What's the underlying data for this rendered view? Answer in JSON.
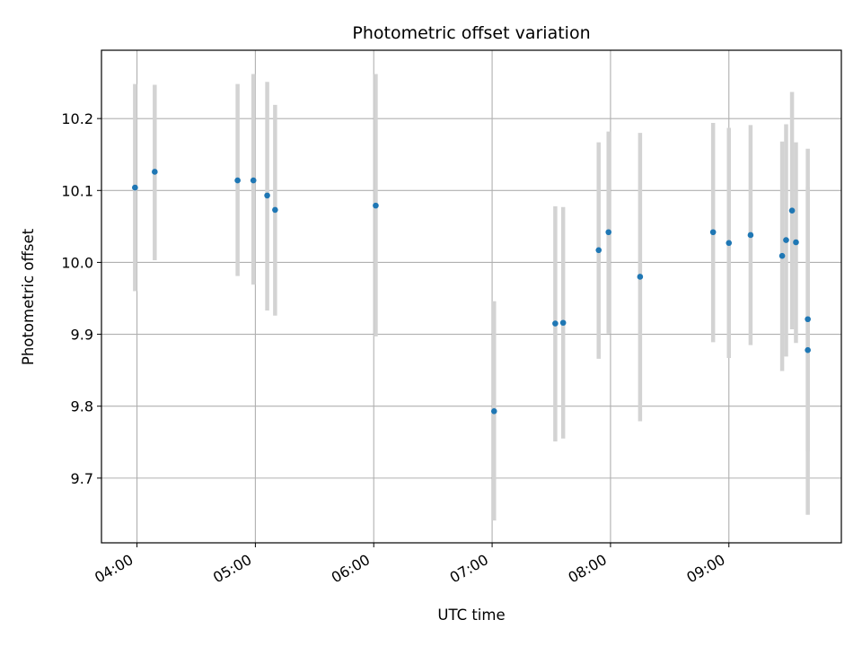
{
  "chart_data": {
    "type": "scatter",
    "title": "Photometric offset variation",
    "xlabel": "UTC time",
    "ylabel": "Photometric offset",
    "x_ticks": [
      "04:00",
      "05:00",
      "06:00",
      "07:00",
      "08:00",
      "09:00"
    ],
    "y_ticks": [
      "9.7",
      "9.8",
      "9.9",
      "10.0",
      "10.1",
      "10.2"
    ],
    "y_tick_values": [
      9.7,
      9.8,
      9.9,
      10.0,
      10.1,
      10.2
    ],
    "xlim": [
      "03:42",
      "09:57"
    ],
    "ylim": [
      9.61,
      10.295
    ],
    "grid": true,
    "point_color": "#1f77b4",
    "errorbar_color": "#d3d3d3",
    "points": [
      {
        "time": "03:59",
        "y": 10.104,
        "err_low": 9.96,
        "err_high": 10.248
      },
      {
        "time": "04:09",
        "y": 10.126,
        "err_low": 10.003,
        "err_high": 10.247
      },
      {
        "time": "04:51",
        "y": 10.114,
        "err_low": 9.981,
        "err_high": 10.248
      },
      {
        "time": "04:59",
        "y": 10.114,
        "err_low": 9.969,
        "err_high": 10.262
      },
      {
        "time": "05:06",
        "y": 10.093,
        "err_low": 9.933,
        "err_high": 10.251
      },
      {
        "time": "05:10",
        "y": 10.073,
        "err_low": 9.926,
        "err_high": 10.219
      },
      {
        "time": "06:01",
        "y": 10.079,
        "err_low": 9.897,
        "err_high": 10.262
      },
      {
        "time": "07:01",
        "y": 9.793,
        "err_low": 9.641,
        "err_high": 9.946
      },
      {
        "time": "07:32",
        "y": 9.915,
        "err_low": 9.751,
        "err_high": 10.078
      },
      {
        "time": "07:36",
        "y": 9.916,
        "err_low": 9.755,
        "err_high": 10.077
      },
      {
        "time": "07:54",
        "y": 10.017,
        "err_low": 9.866,
        "err_high": 10.167
      },
      {
        "time": "07:59",
        "y": 10.042,
        "err_low": 9.901,
        "err_high": 10.182
      },
      {
        "time": "08:15",
        "y": 9.98,
        "err_low": 9.779,
        "err_high": 10.18
      },
      {
        "time": "08:52",
        "y": 10.042,
        "err_low": 9.889,
        "err_high": 10.194
      },
      {
        "time": "09:00",
        "y": 10.027,
        "err_low": 9.867,
        "err_high": 10.187
      },
      {
        "time": "09:11",
        "y": 10.038,
        "err_low": 9.885,
        "err_high": 10.191
      },
      {
        "time": "09:27",
        "y": 10.009,
        "err_low": 9.849,
        "err_high": 10.168
      },
      {
        "time": "09:29",
        "y": 10.031,
        "err_low": 9.869,
        "err_high": 10.192
      },
      {
        "time": "09:32",
        "y": 10.072,
        "err_low": 9.907,
        "err_high": 10.237
      },
      {
        "time": "09:34",
        "y": 10.028,
        "err_low": 9.888,
        "err_high": 10.167
      },
      {
        "time": "09:40",
        "y": 9.921,
        "err_low": 9.737,
        "err_high": 10.105
      },
      {
        "time": "09:40",
        "y": 9.878,
        "err_low": 9.649,
        "err_high": 10.158
      }
    ]
  }
}
